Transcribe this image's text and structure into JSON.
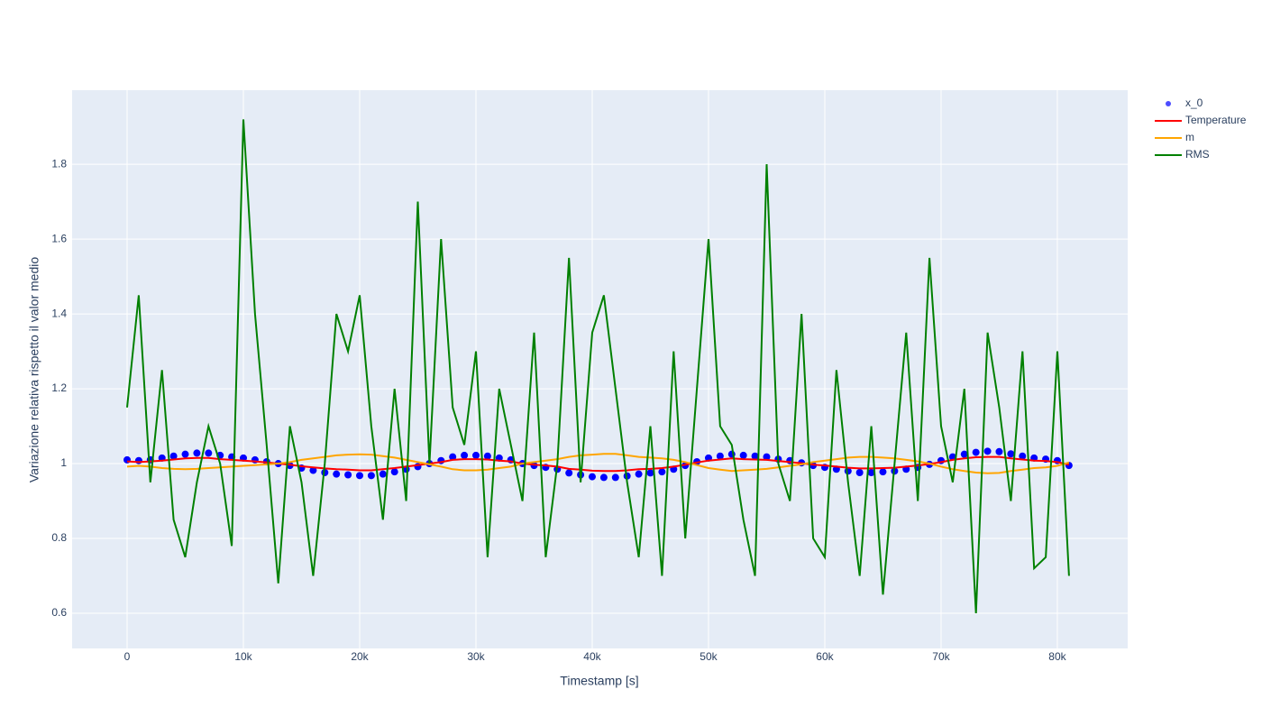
{
  "chart_data": {
    "type": "line",
    "x_label": "Timestamp [s]",
    "y_label": "Variazione relativa rispetto il valor medio",
    "x": [
      0,
      1000,
      2000,
      3000,
      4000,
      5000,
      6000,
      7000,
      8000,
      9000,
      10000,
      11000,
      12000,
      13000,
      14000,
      15000,
      16000,
      17000,
      18000,
      19000,
      20000,
      21000,
      22000,
      23000,
      24000,
      25000,
      26000,
      27000,
      28000,
      29000,
      30000,
      31000,
      32000,
      33000,
      34000,
      35000,
      36000,
      37000,
      38000,
      39000,
      40000,
      41000,
      42000,
      43000,
      44000,
      45000,
      46000,
      47000,
      48000,
      49000,
      50000,
      51000,
      52000,
      53000,
      54000,
      55000,
      56000,
      57000,
      58000,
      59000,
      60000,
      61000,
      62000,
      63000,
      64000,
      65000,
      66000,
      67000,
      68000,
      69000,
      70000,
      71000,
      72000,
      73000,
      74000,
      75000,
      76000,
      77000,
      78000,
      79000,
      80000,
      81000
    ],
    "series": [
      {
        "name": "x_0",
        "mode": "markers",
        "color": "#0000ff",
        "values": [
          1.01,
          1.008,
          1.01,
          1.015,
          1.02,
          1.025,
          1.028,
          1.028,
          1.022,
          1.018,
          1.015,
          1.01,
          1.005,
          1.0,
          0.995,
          0.988,
          0.982,
          0.976,
          0.972,
          0.97,
          0.968,
          0.968,
          0.972,
          0.978,
          0.985,
          0.992,
          1.0,
          1.008,
          1.018,
          1.022,
          1.022,
          1.02,
          1.015,
          1.01,
          1.0,
          0.995,
          0.99,
          0.985,
          0.975,
          0.97,
          0.965,
          0.963,
          0.963,
          0.967,
          0.972,
          0.975,
          0.978,
          0.985,
          0.995,
          1.005,
          1.015,
          1.02,
          1.025,
          1.022,
          1.02,
          1.018,
          1.012,
          1.008,
          1.002,
          0.995,
          0.99,
          0.985,
          0.98,
          0.976,
          0.976,
          0.978,
          0.98,
          0.985,
          0.99,
          0.998,
          1.008,
          1.018,
          1.025,
          1.03,
          1.033,
          1.032,
          1.026,
          1.02,
          1.015,
          1.012,
          1.008,
          0.995
        ]
      },
      {
        "name": "Temperature",
        "mode": "lines",
        "color": "#ff0000",
        "values": [
          1.006,
          1.004,
          1.006,
          1.008,
          1.011,
          1.014,
          1.015,
          1.015,
          1.012,
          1.01,
          1.008,
          1.006,
          1.003,
          1.0,
          0.997,
          0.993,
          0.99,
          0.987,
          0.985,
          0.984,
          0.982,
          0.982,
          0.985,
          0.988,
          0.992,
          0.996,
          1.0,
          1.004,
          1.01,
          1.012,
          1.012,
          1.011,
          1.008,
          1.006,
          1.0,
          0.997,
          0.995,
          0.992,
          0.986,
          0.984,
          0.981,
          0.98,
          0.98,
          0.982,
          0.985,
          0.986,
          0.988,
          0.992,
          0.997,
          1.003,
          1.008,
          1.011,
          1.014,
          1.012,
          1.011,
          1.01,
          1.007,
          1.004,
          1.001,
          0.997,
          0.995,
          0.992,
          0.989,
          0.987,
          0.987,
          0.988,
          0.989,
          0.992,
          0.995,
          0.999,
          1.004,
          1.01,
          1.014,
          1.017,
          1.018,
          1.018,
          1.014,
          1.011,
          1.008,
          1.007,
          1.004,
          0.997
        ]
      },
      {
        "name": "m",
        "mode": "lines",
        "color": "#ffa500",
        "values": [
          0.992,
          0.994,
          0.992,
          0.988,
          0.986,
          0.985,
          0.986,
          0.988,
          0.99,
          0.992,
          0.994,
          0.996,
          0.998,
          1.0,
          1.004,
          1.01,
          1.014,
          1.018,
          1.022,
          1.024,
          1.025,
          1.024,
          1.02,
          1.016,
          1.01,
          1.004,
          0.998,
          0.992,
          0.985,
          0.982,
          0.982,
          0.984,
          0.988,
          0.992,
          1.0,
          1.004,
          1.008,
          1.012,
          1.018,
          1.022,
          1.024,
          1.026,
          1.026,
          1.022,
          1.018,
          1.016,
          1.014,
          1.01,
          1.004,
          0.996,
          0.988,
          0.984,
          0.98,
          0.982,
          0.984,
          0.986,
          0.99,
          0.994,
          0.998,
          1.004,
          1.008,
          1.012,
          1.016,
          1.018,
          1.018,
          1.016,
          1.014,
          1.01,
          1.006,
          1.0,
          0.992,
          0.985,
          0.98,
          0.976,
          0.974,
          0.975,
          0.98,
          0.984,
          0.988,
          0.99,
          0.994,
          1.003
        ]
      },
      {
        "name": "RMS",
        "mode": "lines",
        "color": "#008000",
        "values": [
          1.15,
          1.45,
          0.95,
          1.25,
          0.85,
          0.75,
          0.95,
          1.1,
          1.0,
          0.78,
          1.92,
          1.4,
          1.05,
          0.68,
          1.1,
          0.95,
          0.7,
          1.0,
          1.4,
          1.3,
          1.45,
          1.1,
          0.85,
          1.2,
          0.9,
          1.7,
          1.0,
          1.6,
          1.15,
          1.05,
          1.3,
          0.75,
          1.2,
          1.05,
          0.9,
          1.35,
          0.75,
          1.0,
          1.55,
          0.95,
          1.35,
          1.45,
          1.2,
          0.95,
          0.75,
          1.1,
          0.7,
          1.3,
          0.8,
          1.2,
          1.6,
          1.1,
          1.05,
          0.85,
          0.7,
          1.8,
          1.0,
          0.9,
          1.4,
          0.8,
          0.75,
          1.25,
          0.95,
          0.7,
          1.1,
          0.65,
          1.0,
          1.35,
          0.9,
          1.55,
          1.1,
          0.95,
          1.2,
          0.6,
          1.35,
          1.15,
          0.9,
          1.3,
          0.72,
          0.75,
          1.3,
          0.7
        ]
      }
    ],
    "xlim": [
      -4730,
      86050
    ],
    "ylim": [
      0.506,
      1.998
    ],
    "xticks": [
      0,
      {
        "value": 10000,
        "label": "10k"
      },
      {
        "value": 20000,
        "label": "20k"
      },
      {
        "value": 30000,
        "label": "30k"
      },
      {
        "value": 40000,
        "label": "40k"
      },
      {
        "value": 50000,
        "label": "50k"
      },
      {
        "value": 60000,
        "label": "60k"
      },
      {
        "value": 70000,
        "label": "70k"
      },
      {
        "value": 80000,
        "label": "80k"
      }
    ],
    "yticks": [
      0.6,
      0.8,
      1,
      1.2,
      1.4,
      1.6,
      1.8
    ],
    "grid": true,
    "legend": "right"
  }
}
